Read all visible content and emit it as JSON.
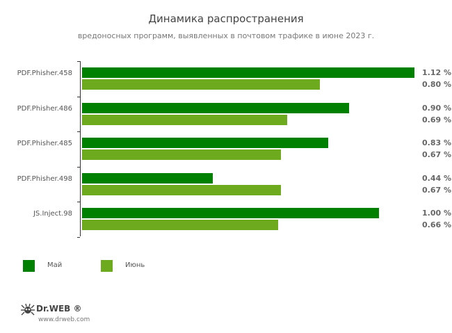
{
  "header": {
    "title": "Динамика распространения",
    "subtitle": "вредоносных программ, выявленных в почтовом трафике в июне 2023 г."
  },
  "colors": {
    "may": "#008000",
    "june": "#6eaa1e"
  },
  "legend": [
    {
      "label": "Май",
      "color": "#008000"
    },
    {
      "label": "Июнь",
      "color": "#6eaa1e"
    }
  ],
  "rows": [
    {
      "name": "PDF.Phisher.458",
      "may": 1.12,
      "june": 0.8,
      "may_label": "1.12 %",
      "june_label": "0.80 %"
    },
    {
      "name": "PDF.Phisher.486",
      "may": 0.9,
      "june": 0.69,
      "may_label": "0.90 %",
      "june_label": "0.69 %"
    },
    {
      "name": "PDF.Phisher.485",
      "may": 0.83,
      "june": 0.67,
      "may_label": "0.83 %",
      "june_label": "0.67 %"
    },
    {
      "name": "PDF.Phisher.498",
      "may": 0.44,
      "june": 0.67,
      "may_label": "0.44 %",
      "june_label": "0.67 %"
    },
    {
      "name": "JS.Inject.98",
      "may": 1.0,
      "june": 0.66,
      "may_label": "1.00 %",
      "june_label": "0.66 %"
    }
  ],
  "logo": {
    "brand": "Dr.WEB",
    "url": "www.drweb.com"
  },
  "chart_data": {
    "type": "bar",
    "orientation": "horizontal",
    "title": "Динамика распространения",
    "subtitle": "вредоносных программ, выявленных в почтовом трафике в июне 2023 г.",
    "categories": [
      "PDF.Phisher.458",
      "PDF.Phisher.486",
      "PDF.Phisher.485",
      "PDF.Phisher.498",
      "JS.Inject.98"
    ],
    "series": [
      {
        "name": "Май",
        "color": "#008000",
        "values": [
          1.12,
          0.9,
          0.83,
          0.44,
          1.0
        ]
      },
      {
        "name": "Июнь",
        "color": "#6eaa1e",
        "values": [
          0.8,
          0.69,
          0.67,
          0.67,
          0.66
        ]
      }
    ],
    "unit": "%",
    "xlabel": "",
    "ylabel": "",
    "grid": false,
    "legend_position": "bottom-left",
    "data_labels": true
  }
}
